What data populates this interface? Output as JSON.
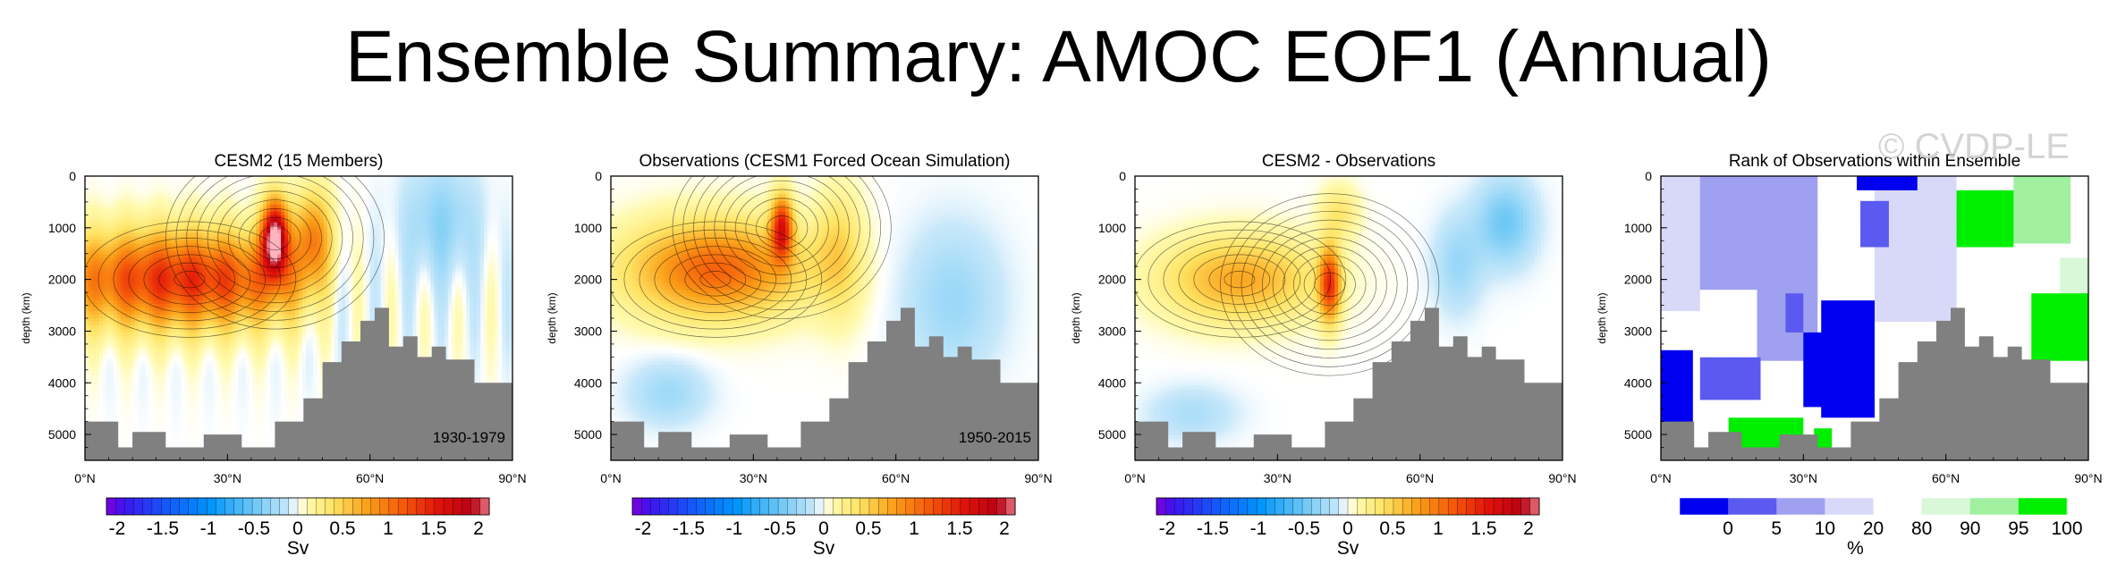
{
  "title": "Ensemble Summary: AMOC EOF1 (Annual)",
  "watermark": "© CVDP-LE",
  "colors": {
    "land": "#808080",
    "frame": "#000000"
  },
  "chart_data": [
    {
      "type": "contour",
      "title": "CESM2 (15 Members)",
      "ylabel": "depth (km)",
      "x_ticks": [
        "0°N",
        "30°N",
        "60°N",
        "90°N"
      ],
      "y_ticks": [
        "0",
        "1000",
        "2000",
        "3000",
        "4000",
        "5000"
      ],
      "xlim": [
        0,
        90
      ],
      "ylim": [
        5500,
        0
      ],
      "period": "1930-1979",
      "colorbar": {
        "labels": [
          "-2",
          "-1.5",
          "-1",
          "-0.5",
          "0",
          "0.5",
          "1",
          "1.5",
          "2"
        ],
        "units": "Sv"
      },
      "field": {
        "peak_lat": 40,
        "peak_depth": 1200,
        "peak_value": 2.3
      }
    },
    {
      "type": "contour",
      "title": "Observations (CESM1 Forced Ocean Simulation)",
      "ylabel": "depth (km)",
      "x_ticks": [
        "0°N",
        "30°N",
        "60°N",
        "90°N"
      ],
      "y_ticks": [
        "0",
        "1000",
        "2000",
        "3000",
        "4000",
        "5000"
      ],
      "xlim": [
        0,
        90
      ],
      "ylim": [
        5500,
        0
      ],
      "period": "1950-2015",
      "colorbar": {
        "labels": [
          "-2",
          "-1.5",
          "-1",
          "-0.5",
          "0",
          "0.5",
          "1",
          "1.5",
          "2"
        ],
        "units": "Sv"
      },
      "field": {
        "peak_lat": 36,
        "peak_depth": 1000,
        "peak_value": 1.6
      }
    },
    {
      "type": "contour",
      "title": "CESM2 - Observations",
      "ylabel": "depth (km)",
      "x_ticks": [
        "0°N",
        "30°N",
        "60°N",
        "90°N"
      ],
      "y_ticks": [
        "0",
        "1000",
        "2000",
        "3000",
        "4000",
        "5000"
      ],
      "xlim": [
        0,
        90
      ],
      "ylim": [
        5500,
        0
      ],
      "period": "",
      "colorbar": {
        "labels": [
          "-2",
          "-1.5",
          "-1",
          "-0.5",
          "0",
          "0.5",
          "1",
          "1.5",
          "2"
        ],
        "units": "Sv"
      },
      "field": {
        "peak_lat": 41,
        "peak_depth": 2100,
        "peak_value": 1.2
      }
    },
    {
      "type": "heatmap",
      "title": "Rank of Observations within Ensemble",
      "ylabel": "depth (km)",
      "x_ticks": [
        "0°N",
        "30°N",
        "60°N",
        "90°N"
      ],
      "y_ticks": [
        "0",
        "1000",
        "2000",
        "3000",
        "4000",
        "5000"
      ],
      "xlim": [
        0,
        90
      ],
      "ylim": [
        5500,
        0
      ],
      "period": "",
      "colorbar": {
        "labels": [
          "0",
          "5",
          "10",
          "20",
          "80",
          "90",
          "95",
          "100"
        ],
        "units": "%"
      }
    }
  ]
}
